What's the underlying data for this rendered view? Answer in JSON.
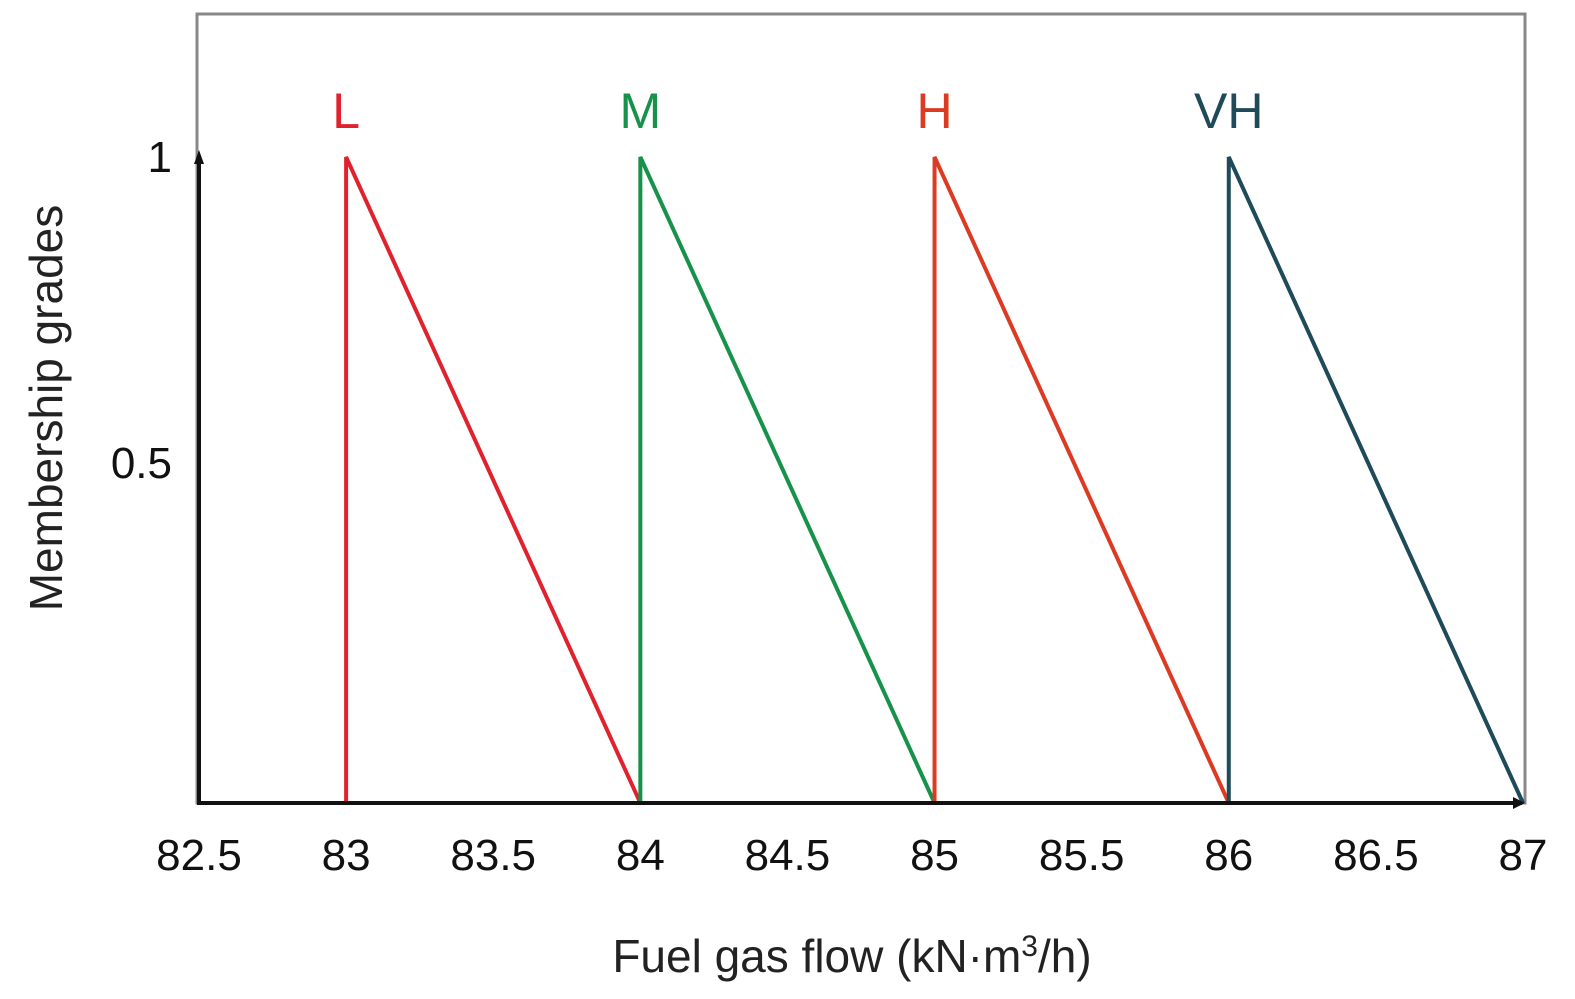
{
  "chart_data": {
    "type": "line",
    "title": "",
    "xlabel": "Fuel gas flow (kN·m3/h)",
    "xlabel_parts": {
      "main": "Fuel gas flow (kN·m",
      "sup": "3",
      "tail": "/h)"
    },
    "ylabel": "Membership grades",
    "xlim": [
      82.5,
      87
    ],
    "ylim": [
      0,
      1
    ],
    "x_ticks": [
      "82.5",
      "83",
      "83.5",
      "84",
      "84.5",
      "85",
      "85.5",
      "86",
      "86.5",
      "87"
    ],
    "x_tick_values": [
      82.5,
      83,
      83.5,
      84,
      84.5,
      85,
      85.5,
      86,
      86.5,
      87
    ],
    "y_ticks": [
      "0.5",
      "1"
    ],
    "y_tick_values": [
      0.5,
      1
    ],
    "grid": false,
    "series": [
      {
        "name": "L",
        "color": "#e0222e",
        "x": [
          83,
          83,
          84
        ],
        "y": [
          0,
          1,
          0
        ]
      },
      {
        "name": "M",
        "color": "#17924a",
        "x": [
          84,
          84,
          85
        ],
        "y": [
          0,
          1,
          0
        ]
      },
      {
        "name": "H",
        "color": "#dc3a22",
        "x": [
          85,
          85,
          86
        ],
        "y": [
          0,
          1,
          0
        ]
      },
      {
        "name": "VH",
        "color": "#1e4a5a",
        "x": [
          86,
          86,
          87
        ],
        "y": [
          0,
          1,
          0
        ]
      }
    ]
  }
}
